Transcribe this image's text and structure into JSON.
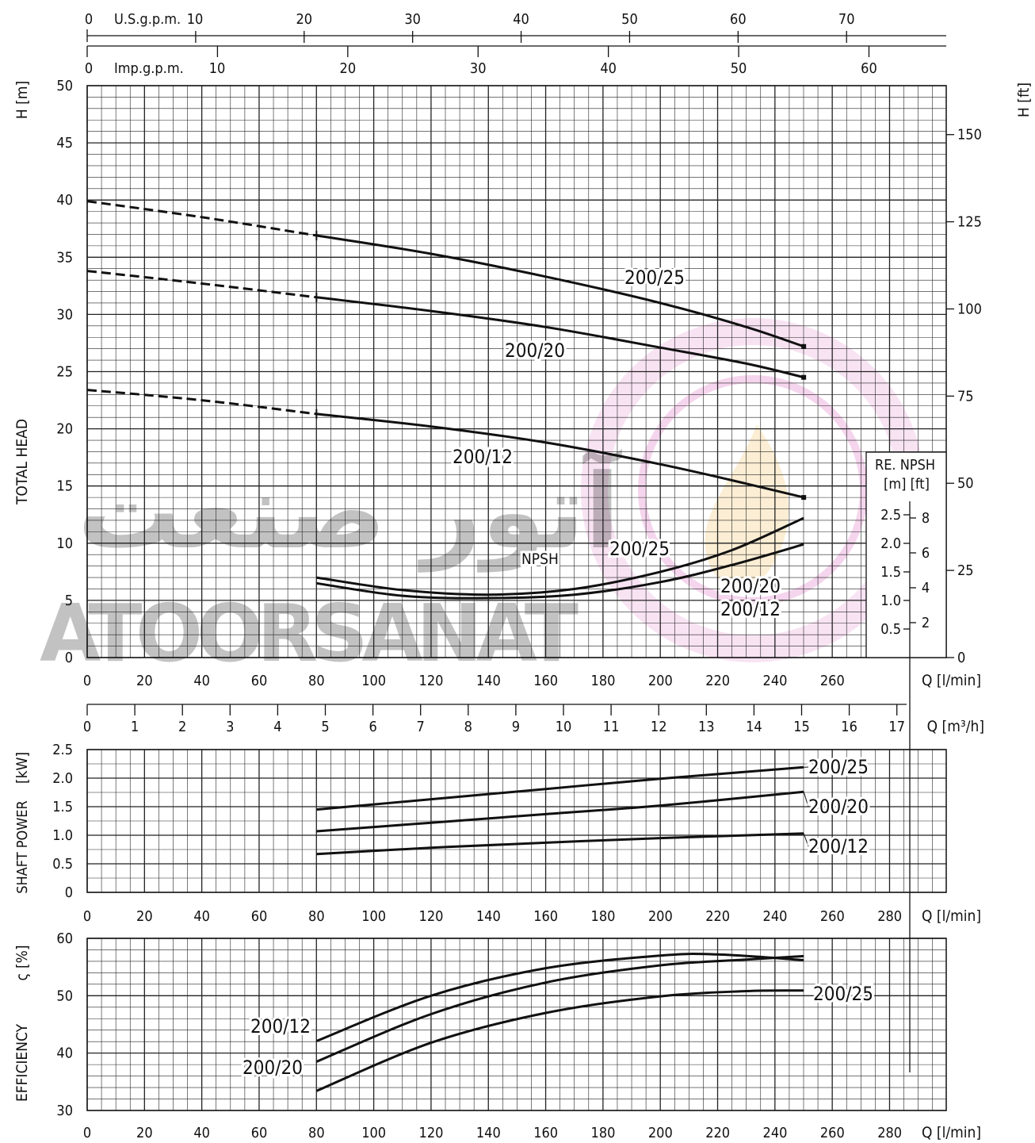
{
  "watermark": {
    "text_fa": "آتور صنعت",
    "text_en": "ATOORSANAT",
    "color": "#c9169c",
    "flame_color": "#f2b23a"
  },
  "chart_data": [
    {
      "id": "head",
      "type": "line",
      "ylabel": "TOTAL HEAD",
      "y_unit": "H [m]",
      "y2_unit": "H [ft]",
      "xlabel": "Q [l/min]",
      "xlim": [
        0,
        260
      ],
      "ylim": [
        0,
        50
      ],
      "x_ticks": [
        0,
        20,
        40,
        60,
        80,
        100,
        120,
        140,
        160,
        180,
        200,
        220,
        240,
        260
      ],
      "y_ticks": [
        0,
        5,
        10,
        15,
        20,
        25,
        30,
        35,
        40,
        45,
        50
      ],
      "y2_ticks": [
        0,
        25,
        50,
        75,
        100,
        125,
        150
      ],
      "top_axes": [
        {
          "label": "U.S.g.p.m.",
          "ticks": [
            "0",
            "10",
            "20",
            "30",
            "40",
            "50",
            "60",
            "70"
          ]
        },
        {
          "label": "Imp.g.p.m.",
          "ticks": [
            "0",
            "10",
            "20",
            "30",
            "40",
            "50",
            "60"
          ]
        }
      ],
      "grid": true,
      "series": [
        {
          "name": "200/25",
          "dashed_until": 80,
          "x": [
            0,
            40,
            80,
            120,
            160,
            200,
            230,
            250
          ],
          "y": [
            39.9,
            38.5,
            36.9,
            35.3,
            33.3,
            31.0,
            28.9,
            27.2
          ]
        },
        {
          "name": "200/20",
          "dashed_until": 80,
          "x": [
            0,
            40,
            80,
            120,
            160,
            200,
            230,
            250
          ],
          "y": [
            33.8,
            32.7,
            31.5,
            30.3,
            28.9,
            27.1,
            25.7,
            24.5
          ]
        },
        {
          "name": "200/12",
          "dashed_until": 80,
          "x": [
            0,
            40,
            80,
            120,
            160,
            200,
            230,
            250
          ],
          "y": [
            23.4,
            22.5,
            21.3,
            20.2,
            18.8,
            16.9,
            15.2,
            14.0
          ]
        }
      ],
      "npsh": {
        "label": "NPSH",
        "inset_title": "RE. NPSH",
        "inset_units": "[m] [ft]",
        "inset_m_ticks": [
          "0.5",
          "1.0",
          "1.5",
          "2.0",
          "2.5"
        ],
        "inset_ft_ticks": [
          "2",
          "4",
          "6",
          "8"
        ],
        "series": [
          {
            "name": "200/25",
            "x": [
              80,
              110,
              140,
              170,
              200,
              225,
              250
            ],
            "y": [
              7.0,
              5.9,
              5.5,
              6.0,
              7.5,
              9.4,
              12.2
            ]
          },
          {
            "name": "200/20",
            "x": [
              80,
              110,
              140,
              170,
              200,
              225,
              250
            ],
            "y": [
              6.5,
              5.4,
              5.2,
              5.5,
              6.6,
              8.1,
              9.9
            ]
          }
        ],
        "label_200_12": "200/12"
      }
    },
    {
      "id": "m3h",
      "type": "axis",
      "xlabel": "Q [m³/h]",
      "x_ticks": [
        "0",
        "1",
        "2",
        "3",
        "4",
        "5",
        "6",
        "7",
        "8",
        "9",
        "10",
        "11",
        "12",
        "13",
        "14",
        "15",
        "16",
        "17"
      ]
    },
    {
      "id": "power",
      "type": "line",
      "ylabel": "SHAFT POWER",
      "y_unit": "[kW]",
      "xlabel": "Q [l/min]",
      "xlim": [
        0,
        300
      ],
      "ylim": [
        0,
        2.5
      ],
      "x_ticks": [
        0,
        20,
        40,
        60,
        80,
        100,
        120,
        140,
        160,
        180,
        200,
        220,
        240,
        260,
        280
      ],
      "y_ticks": [
        "0",
        "0.5",
        "1.0",
        "1.5",
        "2.0",
        "2.5"
      ],
      "grid": true,
      "series": [
        {
          "name": "200/25",
          "x": [
            80,
            120,
            160,
            200,
            250
          ],
          "y": [
            1.45,
            1.63,
            1.81,
            1.99,
            2.19
          ]
        },
        {
          "name": "200/20",
          "x": [
            80,
            120,
            160,
            200,
            250
          ],
          "y": [
            1.07,
            1.22,
            1.37,
            1.52,
            1.76
          ]
        },
        {
          "name": "200/12",
          "x": [
            80,
            120,
            160,
            200,
            250
          ],
          "y": [
            0.67,
            0.78,
            0.87,
            0.95,
            1.03
          ]
        }
      ]
    },
    {
      "id": "efficiency",
      "type": "line",
      "ylabel": "EFFICIENCY",
      "y_unit": "ς [%]",
      "xlabel": "Q [l/min]",
      "xlim": [
        0,
        300
      ],
      "ylim": [
        30,
        60
      ],
      "x_ticks": [
        0,
        20,
        40,
        60,
        80,
        100,
        120,
        140,
        160,
        180,
        200,
        220,
        240,
        260,
        280
      ],
      "y_ticks": [
        30,
        40,
        50,
        60
      ],
      "grid": true,
      "series": [
        {
          "name": "200/12",
          "x": [
            80,
            120,
            160,
            200,
            220,
            250
          ],
          "y": [
            42.1,
            50.0,
            54.8,
            57.0,
            57.2,
            56.2
          ]
        },
        {
          "name": "200/20",
          "x": [
            80,
            120,
            160,
            200,
            230,
            250
          ],
          "y": [
            38.5,
            46.8,
            52.3,
            55.3,
            56.3,
            56.9
          ]
        },
        {
          "name": "200/25",
          "x": [
            80,
            120,
            160,
            200,
            230,
            250
          ],
          "y": [
            33.4,
            41.8,
            47.0,
            49.9,
            50.8,
            50.9
          ]
        }
      ]
    }
  ]
}
